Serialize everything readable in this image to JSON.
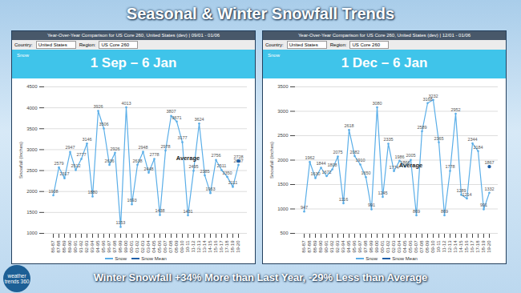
{
  "title": "Seasonal & Winter Snowfall Trends",
  "caption": "Winter Snowfall +34% More than Last Year, -29% Less than Average",
  "logo": "weather trends 360",
  "chart_data": [
    {
      "type": "line",
      "title": "1 Sep – 6 Jan",
      "subtitle": "Year-Over-Year Comparison for US Core 260, United States (dev) | 09/01 - 01/06",
      "filters": [
        {
          "label": "Country:",
          "value": "United States"
        },
        {
          "label": "Region:",
          "value": "US Core 260"
        }
      ],
      "info_label": "Snow",
      "y_label": "Snowfall (Inches)",
      "categories": [
        "86-87",
        "87-88",
        "88-89",
        "89-90",
        "90-91",
        "91-92",
        "92-93",
        "93-94",
        "94-95",
        "95-96",
        "96-97",
        "97-98",
        "98-99",
        "99-00",
        "00-01",
        "01-02",
        "02-03",
        "03-04",
        "04-05",
        "05-06",
        "06-07",
        "07-08",
        "08-09",
        "09-10",
        "10-11",
        "11-12",
        "12-13",
        "13-14",
        "14-15",
        "15-16",
        "16-17",
        "17-18",
        "18-19",
        "19-20"
      ],
      "series": [
        {
          "name": "Snow",
          "color": "#5aaee8",
          "type": "line",
          "marker": "circle",
          "values": [
            1908,
            2579,
            2317,
            2947,
            2512,
            2777,
            3146,
            1880,
            3926,
            3506,
            2636,
            2926,
            1153,
            4013,
            1693,
            2638,
            2948,
            2448,
            2778,
            1438,
            2978,
            3807,
            3671,
            3177,
            1431,
            2495,
            3624,
            2385,
            1963,
            2756,
            2511,
            2350,
            2111,
            2637
          ]
        },
        {
          "name": "Snow Mean",
          "color": "#1f5fa8",
          "type": "scatter",
          "marker": "circle",
          "values": [
            null,
            null,
            null,
            null,
            null,
            null,
            null,
            null,
            null,
            null,
            null,
            null,
            null,
            null,
            null,
            null,
            null,
            null,
            null,
            null,
            null,
            null,
            null,
            null,
            null,
            null,
            null,
            null,
            null,
            null,
            null,
            null,
            null,
            2728
          ]
        }
      ],
      "annotations": [
        {
          "text": "Average",
          "x": "10-11",
          "y": 2800
        }
      ],
      "ylim": [
        1000,
        4500
      ],
      "yticks": [
        1000,
        1500,
        2000,
        2500,
        3000,
        3500,
        4000,
        4500
      ],
      "grid": true,
      "data_labels": true,
      "legend": "bottom"
    },
    {
      "type": "line",
      "title": "1 Dec – 6 Jan",
      "subtitle": "Year-Over-Year Comparison for US Core 260, United States (dev) | 12/01 - 01/06",
      "filters": [
        {
          "label": "Country:",
          "value": "United States"
        },
        {
          "label": "Region:",
          "value": "US Core 260"
        }
      ],
      "info_label": "Snow",
      "y_label": "Snowfall (Inches)",
      "categories": [
        "86-87",
        "87-88",
        "88-89",
        "89-90",
        "90-91",
        "91-92",
        "92-93",
        "93-94",
        "94-95",
        "95-96",
        "96-97",
        "97-98",
        "98-99",
        "99-00",
        "00-01",
        "01-02",
        "02-03",
        "03-04",
        "04-05",
        "05-06",
        "06-07",
        "07-08",
        "08-09",
        "09-10",
        "10-11",
        "11-12",
        "12-13",
        "13-14",
        "14-15",
        "15-16",
        "16-17",
        "17-18",
        "18-19",
        "19-20"
      ],
      "series": [
        {
          "name": "Snow",
          "color": "#5aaee8",
          "type": "line",
          "marker": "circle",
          "values": [
            947,
            1962,
            1630,
            1844,
            1672,
            1808,
            2075,
            1116,
            2618,
            2082,
            1910,
            1650,
            991,
            3080,
            1245,
            2335,
            1774,
            1986,
            1866,
            2005,
            869,
            2589,
            3168,
            3232,
            2365,
            869,
            1778,
            2952,
            1289,
            1214,
            2344,
            2184,
            991,
            1332
          ]
        },
        {
          "name": "Snow Mean",
          "color": "#1f5fa8",
          "type": "scatter",
          "marker": "circle",
          "values": [
            null,
            null,
            null,
            null,
            null,
            null,
            null,
            null,
            null,
            null,
            null,
            null,
            null,
            null,
            null,
            null,
            null,
            null,
            null,
            null,
            null,
            null,
            null,
            null,
            null,
            null,
            null,
            null,
            null,
            null,
            null,
            null,
            null,
            1867
          ]
        }
      ],
      "annotations": [
        {
          "text": "Average",
          "x": "05-06",
          "y": 1900
        }
      ],
      "ylim": [
        500,
        3500
      ],
      "yticks": [
        500,
        1000,
        1500,
        2000,
        2500,
        3000,
        3500
      ],
      "grid": true,
      "data_labels": true,
      "legend": "bottom"
    }
  ]
}
